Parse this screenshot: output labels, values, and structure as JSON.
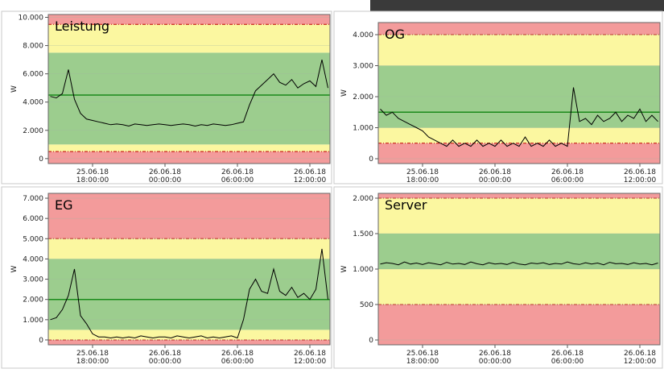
{
  "chart_data": [
    {
      "type": "line",
      "title": "Leistung",
      "ylabel": "W",
      "ylim": [
        -350,
        10200
      ],
      "yticks": [
        0,
        {
          "value": 2000,
          "label": "2.000"
        },
        {
          "value": 4000,
          "label": "4.000"
        },
        {
          "value": 6000,
          "label": "6.000"
        },
        {
          "value": 8000,
          "label": "8.000"
        },
        {
          "value": 10000,
          "label": "10.000"
        }
      ],
      "xlim": [
        "2018-06-25T14:20:00",
        "2018-06-26T13:40:00"
      ],
      "xticks": [
        {
          "value": "2018-06-25T18:00:00",
          "label": "25.06.18 18:00:00"
        },
        {
          "value": "2018-06-26T00:00:00",
          "label": "26.06.18 00:00:00"
        },
        {
          "value": "2018-06-26T06:00:00",
          "label": "26.06.18 06:00:00"
        },
        {
          "value": "2018-06-26T12:00:00",
          "label": "26.06.18 12:00:00"
        }
      ],
      "bands": [
        {
          "from": -350,
          "to": 500,
          "color": "#f39b9b"
        },
        {
          "from": 500,
          "to": 1000,
          "color": "#fbf7a0"
        },
        {
          "from": 1000,
          "to": 7500,
          "color": "#9ccd8e"
        },
        {
          "from": 7500,
          "to": 9500,
          "color": "#fbf7a0"
        },
        {
          "from": 9500,
          "to": 10200,
          "color": "#f39b9b"
        }
      ],
      "target": 4500,
      "x": [
        "2018-06-25T14:30",
        "2018-06-25T15:00",
        "2018-06-25T15:30",
        "2018-06-25T16:00",
        "2018-06-25T16:30",
        "2018-06-25T17:00",
        "2018-06-25T17:30",
        "2018-06-25T18:00",
        "2018-06-25T18:30",
        "2018-06-25T19:00",
        "2018-06-25T19:30",
        "2018-06-25T20:00",
        "2018-06-25T20:30",
        "2018-06-25T21:00",
        "2018-06-25T21:30",
        "2018-06-25T22:00",
        "2018-06-25T22:30",
        "2018-06-25T23:00",
        "2018-06-25T23:30",
        "2018-06-26T00:00",
        "2018-06-26T00:30",
        "2018-06-26T01:00",
        "2018-06-26T01:30",
        "2018-06-26T02:00",
        "2018-06-26T02:30",
        "2018-06-26T03:00",
        "2018-06-26T03:30",
        "2018-06-26T04:00",
        "2018-06-26T04:30",
        "2018-06-26T05:00",
        "2018-06-26T05:30",
        "2018-06-26T06:00",
        "2018-06-26T06:30",
        "2018-06-26T07:00",
        "2018-06-26T07:30",
        "2018-06-26T08:00",
        "2018-06-26T08:30",
        "2018-06-26T09:00",
        "2018-06-26T09:30",
        "2018-06-26T10:00",
        "2018-06-26T10:30",
        "2018-06-26T11:00",
        "2018-06-26T11:30",
        "2018-06-26T12:00",
        "2018-06-26T12:30",
        "2018-06-26T13:00",
        "2018-06-26T13:30"
      ],
      "values": [
        4400,
        4300,
        4600,
        6300,
        4200,
        3200,
        2800,
        2700,
        2600,
        2500,
        2400,
        2450,
        2400,
        2300,
        2450,
        2400,
        2350,
        2400,
        2450,
        2400,
        2350,
        2400,
        2450,
        2400,
        2300,
        2400,
        2350,
        2450,
        2400,
        2350,
        2400,
        2500,
        2600,
        3800,
        4800,
        5200,
        5600,
        6000,
        5400,
        5200,
        5600,
        5000,
        5300,
        5500,
        5100,
        7000,
        5000
      ],
      "color": "#000000"
    },
    {
      "type": "line",
      "title": "OG",
      "ylabel": "W",
      "ylim": [
        -155,
        4390
      ],
      "yticks": [
        0,
        {
          "value": 1000,
          "label": "1.000"
        },
        {
          "value": 2000,
          "label": "2.000"
        },
        {
          "value": 3000,
          "label": "3.000"
        },
        {
          "value": 4000,
          "label": "4.000"
        }
      ],
      "xlim": [
        "2018-06-25T14:20:00",
        "2018-06-26T13:40:00"
      ],
      "xticks": [
        {
          "value": "2018-06-25T18:00:00",
          "label": "25.06.18 18:00:00"
        },
        {
          "value": "2018-06-26T00:00:00",
          "label": "26.06.18 00:00:00"
        },
        {
          "value": "2018-06-26T06:00:00",
          "label": "26.06.18 06:00:00"
        },
        {
          "value": "2018-06-26T12:00:00",
          "label": "26.06.18 12:00:00"
        }
      ],
      "bands": [
        {
          "from": -155,
          "to": 500,
          "color": "#f39b9b"
        },
        {
          "from": 500,
          "to": 1000,
          "color": "#fbf7a0"
        },
        {
          "from": 1000,
          "to": 3000,
          "color": "#9ccd8e"
        },
        {
          "from": 3000,
          "to": 4000,
          "color": "#fbf7a0"
        },
        {
          "from": 4000,
          "to": 4390,
          "color": "#f39b9b"
        }
      ],
      "target": 1500,
      "x": [
        "2018-06-25T14:30",
        "2018-06-25T15:00",
        "2018-06-25T15:30",
        "2018-06-25T16:00",
        "2018-06-25T16:30",
        "2018-06-25T17:00",
        "2018-06-25T17:30",
        "2018-06-25T18:00",
        "2018-06-25T18:30",
        "2018-06-25T19:00",
        "2018-06-25T19:30",
        "2018-06-25T20:00",
        "2018-06-25T20:30",
        "2018-06-25T21:00",
        "2018-06-25T21:30",
        "2018-06-25T22:00",
        "2018-06-25T22:30",
        "2018-06-25T23:00",
        "2018-06-25T23:30",
        "2018-06-26T00:00",
        "2018-06-26T00:30",
        "2018-06-26T01:00",
        "2018-06-26T01:30",
        "2018-06-26T02:00",
        "2018-06-26T02:30",
        "2018-06-26T03:00",
        "2018-06-26T03:30",
        "2018-06-26T04:00",
        "2018-06-26T04:30",
        "2018-06-26T05:00",
        "2018-06-26T05:30",
        "2018-06-26T06:00",
        "2018-06-26T06:30",
        "2018-06-26T07:00",
        "2018-06-26T07:30",
        "2018-06-26T08:00",
        "2018-06-26T08:30",
        "2018-06-26T09:00",
        "2018-06-26T09:30",
        "2018-06-26T10:00",
        "2018-06-26T10:30",
        "2018-06-26T11:00",
        "2018-06-26T11:30",
        "2018-06-26T12:00",
        "2018-06-26T12:30",
        "2018-06-26T13:00",
        "2018-06-26T13:30"
      ],
      "values": [
        1600,
        1400,
        1500,
        1300,
        1200,
        1100,
        1000,
        900,
        700,
        600,
        500,
        400,
        600,
        400,
        500,
        400,
        600,
        400,
        500,
        400,
        600,
        400,
        500,
        400,
        700,
        400,
        500,
        400,
        600,
        400,
        500,
        400,
        2300,
        1200,
        1300,
        1100,
        1400,
        1200,
        1300,
        1500,
        1200,
        1400,
        1300,
        1600,
        1200,
        1400,
        1200
      ],
      "color": "#000000"
    },
    {
      "type": "line",
      "title": "EG",
      "ylabel": "W",
      "ylim": [
        -240,
        7240
      ],
      "yticks": [
        0,
        {
          "value": 1000,
          "label": "1.000"
        },
        {
          "value": 2000,
          "label": "2.000"
        },
        {
          "value": 3000,
          "label": "3.000"
        },
        {
          "value": 4000,
          "label": "4.000"
        },
        {
          "value": 5000,
          "label": "5.000"
        },
        {
          "value": 6000,
          "label": "6.000"
        },
        {
          "value": 7000,
          "label": "7.000"
        }
      ],
      "xlim": [
        "2018-06-25T14:20:00",
        "2018-06-26T13:40:00"
      ],
      "xticks": [
        {
          "value": "2018-06-25T18:00:00",
          "label": "25.06.18 18:00:00"
        },
        {
          "value": "2018-06-26T00:00:00",
          "label": "26.06.18 00:00:00"
        },
        {
          "value": "2018-06-26T06:00:00",
          "label": "26.06.18 06:00:00"
        },
        {
          "value": "2018-06-26T12:00:00",
          "label": "26.06.18 12:00:00"
        }
      ],
      "bands": [
        {
          "from": -240,
          "to": 0,
          "color": "#f39b9b"
        },
        {
          "from": 0,
          "to": 500,
          "color": "#fbf7a0"
        },
        {
          "from": 500,
          "to": 4000,
          "color": "#9ccd8e"
        },
        {
          "from": 4000,
          "to": 5000,
          "color": "#fbf7a0"
        },
        {
          "from": 5000,
          "to": 7240,
          "color": "#f39b9b"
        }
      ],
      "target": 2000,
      "x": [
        "2018-06-25T14:30",
        "2018-06-25T15:00",
        "2018-06-25T15:30",
        "2018-06-25T16:00",
        "2018-06-25T16:30",
        "2018-06-25T17:00",
        "2018-06-25T17:30",
        "2018-06-25T18:00",
        "2018-06-25T18:30",
        "2018-06-25T19:00",
        "2018-06-25T19:30",
        "2018-06-25T20:00",
        "2018-06-25T20:30",
        "2018-06-25T21:00",
        "2018-06-25T21:30",
        "2018-06-25T22:00",
        "2018-06-25T22:30",
        "2018-06-25T23:00",
        "2018-06-25T23:30",
        "2018-06-26T00:00",
        "2018-06-26T00:30",
        "2018-06-26T01:00",
        "2018-06-26T01:30",
        "2018-06-26T02:00",
        "2018-06-26T02:30",
        "2018-06-26T03:00",
        "2018-06-26T03:30",
        "2018-06-26T04:00",
        "2018-06-26T04:30",
        "2018-06-26T05:00",
        "2018-06-26T05:30",
        "2018-06-26T06:00",
        "2018-06-26T06:30",
        "2018-06-26T07:00",
        "2018-06-26T07:30",
        "2018-06-26T08:00",
        "2018-06-26T08:30",
        "2018-06-26T09:00",
        "2018-06-26T09:30",
        "2018-06-26T10:00",
        "2018-06-26T10:30",
        "2018-06-26T11:00",
        "2018-06-26T11:30",
        "2018-06-26T12:00",
        "2018-06-26T12:30",
        "2018-06-26T13:00",
        "2018-06-26T13:30"
      ],
      "values": [
        1000,
        1100,
        1500,
        2200,
        3500,
        1200,
        800,
        300,
        150,
        150,
        100,
        150,
        100,
        150,
        100,
        200,
        150,
        100,
        150,
        150,
        100,
        200,
        150,
        100,
        150,
        200,
        100,
        150,
        100,
        150,
        200,
        100,
        1000,
        2500,
        3000,
        2400,
        2300,
        3500,
        2400,
        2200,
        2600,
        2100,
        2300,
        2000,
        2500,
        4500,
        2000
      ],
      "color": "#000000"
    },
    {
      "type": "line",
      "title": "Server",
      "ylabel": "W",
      "ylim": [
        -68,
        2068
      ],
      "yticks": [
        0,
        500,
        {
          "value": 1000,
          "label": "1.000"
        },
        {
          "value": 1500,
          "label": "1.500"
        },
        {
          "value": 2000,
          "label": "2.000"
        }
      ],
      "xlim": [
        "2018-06-25T14:20:00",
        "2018-06-26T13:40:00"
      ],
      "xticks": [
        {
          "value": "2018-06-25T18:00:00",
          "label": "25.06.18 18:00:00"
        },
        {
          "value": "2018-06-26T00:00:00",
          "label": "26.06.18 00:00:00"
        },
        {
          "value": "2018-06-26T06:00:00",
          "label": "26.06.18 06:00:00"
        },
        {
          "value": "2018-06-26T12:00:00",
          "label": "26.06.18 12:00:00"
        }
      ],
      "bands": [
        {
          "from": -68,
          "to": 500,
          "color": "#f39b9b"
        },
        {
          "from": 500,
          "to": 1000,
          "color": "#fbf7a0"
        },
        {
          "from": 1000,
          "to": 1500,
          "color": "#9ccd8e"
        },
        {
          "from": 1500,
          "to": 2000,
          "color": "#fbf7a0"
        },
        {
          "from": 2000,
          "to": 2068,
          "color": "#f39b9b"
        }
      ],
      "x": [
        "2018-06-25T14:30",
        "2018-06-25T15:00",
        "2018-06-25T15:30",
        "2018-06-25T16:00",
        "2018-06-25T16:30",
        "2018-06-25T17:00",
        "2018-06-25T17:30",
        "2018-06-25T18:00",
        "2018-06-25T18:30",
        "2018-06-25T19:00",
        "2018-06-25T19:30",
        "2018-06-25T20:00",
        "2018-06-25T20:30",
        "2018-06-25T21:00",
        "2018-06-25T21:30",
        "2018-06-25T22:00",
        "2018-06-25T22:30",
        "2018-06-25T23:00",
        "2018-06-25T23:30",
        "2018-06-26T00:00",
        "2018-06-26T00:30",
        "2018-06-26T01:00",
        "2018-06-26T01:30",
        "2018-06-26T02:00",
        "2018-06-26T02:30",
        "2018-06-26T03:00",
        "2018-06-26T03:30",
        "2018-06-26T04:00",
        "2018-06-26T04:30",
        "2018-06-26T05:00",
        "2018-06-26T05:30",
        "2018-06-26T06:00",
        "2018-06-26T06:30",
        "2018-06-26T07:00",
        "2018-06-26T07:30",
        "2018-06-26T08:00",
        "2018-06-26T08:30",
        "2018-06-26T09:00",
        "2018-06-26T09:30",
        "2018-06-26T10:00",
        "2018-06-26T10:30",
        "2018-06-26T11:00",
        "2018-06-26T11:30",
        "2018-06-26T12:00",
        "2018-06-26T12:30",
        "2018-06-26T13:00",
        "2018-06-26T13:30"
      ],
      "values": [
        1070,
        1090,
        1080,
        1060,
        1100,
        1070,
        1085,
        1065,
        1090,
        1075,
        1060,
        1095,
        1070,
        1080,
        1065,
        1100,
        1075,
        1060,
        1090,
        1070,
        1080,
        1065,
        1095,
        1070,
        1060,
        1085,
        1075,
        1090,
        1065,
        1080,
        1070,
        1100,
        1075,
        1065,
        1090,
        1070,
        1085,
        1060,
        1095,
        1075,
        1080,
        1065,
        1090,
        1070,
        1080,
        1060,
        1085
      ],
      "color": "#000000"
    }
  ]
}
